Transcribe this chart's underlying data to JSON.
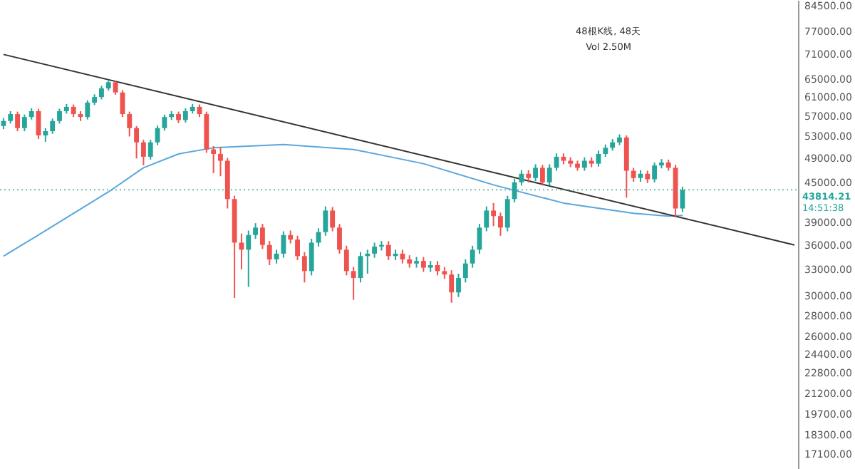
{
  "chart_data": {
    "type": "candlestick",
    "categories": [
      null,
      null,
      null,
      null,
      null,
      null,
      null,
      null,
      null,
      null,
      null,
      null,
      null,
      null,
      null,
      null,
      null,
      null,
      null,
      null,
      null,
      null,
      null,
      null,
      null,
      null,
      null,
      null,
      null,
      null,
      null,
      null,
      null,
      null,
      null,
      null,
      null,
      null,
      null,
      null,
      null,
      null,
      null,
      null,
      null,
      null,
      null,
      null,
      null,
      null,
      null,
      null,
      null,
      null,
      null,
      null,
      null,
      null,
      null,
      null,
      null,
      null,
      null,
      null,
      null,
      null,
      null,
      null,
      null,
      null,
      null,
      null,
      null,
      null,
      null,
      null,
      null,
      null,
      null,
      null,
      null,
      null,
      null,
      null,
      null,
      null,
      null,
      null,
      null,
      null,
      null,
      null,
      null,
      null,
      null,
      null,
      null,
      null,
      null,
      null,
      null,
      null,
      null,
      null,
      null,
      null,
      null,
      null,
      null,
      null,
      null,
      null,
      null,
      null
    ],
    "ohlc": [
      [
        55000,
        56600,
        54400,
        56000
      ],
      [
        56000,
        58000,
        55500,
        57400
      ],
      [
        57400,
        57900,
        54000,
        54600
      ],
      [
        54600,
        57300,
        54000,
        56800
      ],
      [
        56800,
        58600,
        56300,
        58000
      ],
      [
        58000,
        58500,
        52500,
        53200
      ],
      [
        53200,
        54600,
        52000,
        54000
      ],
      [
        54000,
        56500,
        53500,
        56000
      ],
      [
        56000,
        58500,
        55500,
        58000
      ],
      [
        58000,
        59500,
        57500,
        58900
      ],
      [
        58900,
        59400,
        56800,
        57400
      ],
      [
        57400,
        58000,
        56000,
        56800
      ],
      [
        56800,
        60300,
        56300,
        59800
      ],
      [
        59800,
        61600,
        59300,
        61000
      ],
      [
        61000,
        63500,
        60500,
        62900
      ],
      [
        62900,
        64900,
        62400,
        64300
      ],
      [
        64300,
        64700,
        61500,
        62000
      ],
      [
        62000,
        62500,
        56800,
        57400
      ],
      [
        57400,
        57900,
        53000,
        54600
      ],
      [
        54600,
        55000,
        49000,
        51900
      ],
      [
        51900,
        52400,
        47800,
        49300
      ],
      [
        49300,
        52400,
        48800,
        51900
      ],
      [
        51900,
        55100,
        51400,
        54600
      ],
      [
        54600,
        57300,
        54100,
        56800
      ],
      [
        56800,
        58000,
        56200,
        57400
      ],
      [
        57400,
        57900,
        55600,
        56200
      ],
      [
        56200,
        58600,
        55700,
        58000
      ],
      [
        58000,
        59500,
        57500,
        58900
      ],
      [
        58900,
        59400,
        56800,
        57400
      ],
      [
        57400,
        57900,
        50000,
        50600
      ],
      [
        50600,
        51200,
        46500,
        49800
      ],
      [
        49800,
        51000,
        46000,
        48600
      ],
      [
        48600,
        49100,
        41000,
        42400
      ],
      [
        42400,
        42900,
        29800,
        36300
      ],
      [
        36300,
        37500,
        33000,
        35400
      ],
      [
        35400,
        37900,
        31000,
        37300
      ],
      [
        37300,
        38900,
        36800,
        38300
      ],
      [
        38300,
        38800,
        35500,
        36000
      ],
      [
        36000,
        36500,
        33500,
        34200
      ],
      [
        34200,
        35400,
        33700,
        34900
      ],
      [
        34900,
        37800,
        34400,
        37300
      ],
      [
        37300,
        37900,
        36200,
        36700
      ],
      [
        36700,
        37200,
        34100,
        34600
      ],
      [
        34600,
        35100,
        31500,
        32800
      ],
      [
        32800,
        36800,
        32300,
        36300
      ],
      [
        36300,
        38200,
        35800,
        37700
      ],
      [
        37700,
        41300,
        37200,
        40700
      ],
      [
        40700,
        41200,
        37800,
        38300
      ],
      [
        38300,
        38800,
        34900,
        35400
      ],
      [
        35400,
        35900,
        32300,
        32800
      ],
      [
        32800,
        33300,
        29600,
        32000
      ],
      [
        32000,
        35100,
        31500,
        34600
      ],
      [
        34600,
        35400,
        32500,
        34900
      ],
      [
        34900,
        36300,
        34400,
        35800
      ],
      [
        35800,
        36500,
        35300,
        36000
      ],
      [
        36000,
        36500,
        34100,
        34600
      ],
      [
        34600,
        35400,
        34100,
        34900
      ],
      [
        34900,
        35400,
        33700,
        34200
      ],
      [
        34200,
        34700,
        33200,
        33700
      ],
      [
        33700,
        34500,
        33200,
        34000
      ],
      [
        34000,
        34500,
        32700,
        33200
      ],
      [
        33200,
        34000,
        32700,
        33500
      ],
      [
        33500,
        34000,
        32300,
        32800
      ],
      [
        32800,
        33300,
        31900,
        32400
      ],
      [
        32400,
        32900,
        29300,
        30400
      ],
      [
        30400,
        32500,
        29900,
        32000
      ],
      [
        32000,
        34200,
        31500,
        33700
      ],
      [
        33700,
        35900,
        33200,
        35400
      ],
      [
        35400,
        38800,
        34900,
        38300
      ],
      [
        38300,
        41300,
        37800,
        40700
      ],
      [
        40700,
        41800,
        38500,
        39900
      ],
      [
        39900,
        40400,
        37200,
        38300
      ],
      [
        38300,
        42900,
        37800,
        42400
      ],
      [
        42400,
        45600,
        41900,
        45000
      ],
      [
        45000,
        47000,
        44500,
        46400
      ],
      [
        46400,
        47000,
        45000,
        45700
      ],
      [
        45700,
        48000,
        45200,
        47400
      ],
      [
        47400,
        47900,
        44500,
        45000
      ],
      [
        45000,
        48000,
        44500,
        47400
      ],
      [
        47400,
        49900,
        46900,
        49300
      ],
      [
        49300,
        49900,
        48000,
        48600
      ],
      [
        48600,
        49200,
        47500,
        48100
      ],
      [
        48100,
        48600,
        46900,
        47400
      ],
      [
        47400,
        49200,
        46900,
        48600
      ],
      [
        48600,
        49200,
        47500,
        48100
      ],
      [
        48100,
        50400,
        47600,
        49800
      ],
      [
        49800,
        51500,
        49300,
        50900
      ],
      [
        50900,
        52500,
        50400,
        51900
      ],
      [
        51900,
        53400,
        51400,
        52800
      ],
      [
        52800,
        53200,
        42600,
        46900
      ],
      [
        46900,
        47400,
        45100,
        45700
      ],
      [
        45700,
        47000,
        45100,
        46400
      ],
      [
        46400,
        46900,
        44900,
        45500
      ],
      [
        45500,
        48300,
        45000,
        47800
      ],
      [
        47800,
        48900,
        47300,
        48300
      ],
      [
        48300,
        48800,
        46900,
        47400
      ],
      [
        47400,
        47900,
        39800,
        41000
      ],
      [
        41000,
        44300,
        40500,
        43814.21
      ],
      null,
      null,
      null,
      null,
      null,
      null,
      null,
      null,
      null,
      null,
      null,
      null,
      null,
      null,
      null,
      null
    ],
    "colors": [
      "#26a69a",
      "#26a69a",
      "#ef5350",
      "#26a69a",
      "#26a69a",
      "#ef5350",
      "#26a69a",
      "#26a69a",
      "#26a69a",
      "#26a69a",
      "#ef5350",
      "#ef5350",
      "#26a69a",
      "#26a69a",
      "#26a69a",
      "#26a69a",
      "#ef5350",
      "#ef5350",
      "#ef5350",
      "#ef5350",
      "#ef5350",
      "#26a69a",
      "#26a69a",
      "#26a69a",
      "#26a69a",
      "#ef5350",
      "#26a69a",
      "#26a69a",
      "#ef5350",
      "#ef5350",
      "#ef5350",
      "#ef5350",
      "#ef5350",
      "#ef5350",
      "#ef5350",
      "#26a69a",
      "#26a69a",
      "#ef5350",
      "#ef5350",
      "#26a69a",
      "#26a69a",
      "#ef5350",
      "#ef5350",
      "#ef5350",
      "#26a69a",
      "#26a69a",
      "#26a69a",
      "#ef5350",
      "#ef5350",
      "#ef5350",
      "#ef5350",
      "#26a69a",
      "#26a69a",
      "#26a69a",
      "#26a69a",
      "#ef5350",
      "#26a69a",
      "#ef5350",
      "#ef5350",
      "#26a69a",
      "#ef5350",
      "#26a69a",
      "#ef5350",
      "#ef5350",
      "#ef5350",
      "#26a69a",
      "#26a69a",
      "#26a69a",
      "#26a69a",
      "#26a69a",
      "#ef5350",
      "#ef5350",
      "#26a69a",
      "#26a69a",
      "#26a69a",
      "#ef5350",
      "#26a69a",
      "#ef5350",
      "#26a69a",
      "#26a69a",
      "#ef5350",
      "#ef5350",
      "#ef5350",
      "#26a69a",
      "#ef5350",
      "#26a69a",
      "#26a69a",
      "#26a69a",
      "#26a69a",
      "#ef5350",
      "#ef5350",
      "#26a69a",
      "#ef5350",
      "#26a69a",
      "#26a69a",
      "#ef5350",
      "#ef5350",
      "#26a69a",
      null,
      null,
      null,
      null,
      null,
      null,
      null,
      null,
      null,
      null,
      null,
      null,
      null,
      null,
      null,
      null
    ],
    "series": [
      {
        "type": "line",
        "color": "#5aa7de",
        "values": [
          34600,
          null,
          null,
          null,
          null,
          37300,
          null,
          null,
          null,
          null,
          40300,
          null,
          null,
          null,
          null,
          43500,
          null,
          null,
          null,
          null,
          47400,
          null,
          null,
          null,
          null,
          49800,
          null,
          null,
          null,
          null,
          50900,
          null,
          null,
          null,
          null,
          null,
          null,
          null,
          null,
          null,
          51500,
          null,
          null,
          null,
          null,
          null,
          null,
          null,
          null,
          null,
          50600,
          null,
          null,
          null,
          null,
          null,
          null,
          null,
          null,
          null,
          48100,
          null,
          null,
          null,
          null,
          null,
          null,
          null,
          null,
          null,
          44600,
          null,
          null,
          null,
          null,
          null,
          null,
          null,
          null,
          null,
          41800,
          null,
          null,
          null,
          null,
          null,
          null,
          null,
          null,
          null,
          40300,
          null,
          null,
          null,
          null,
          39900,
          null,
          40000,
          null,
          null,
          null,
          null,
          null,
          null,
          null,
          null,
          null,
          null,
          null,
          null,
          null,
          null,
          null,
          null
        ]
      },
      {
        "type": "line",
        "color": "#333333",
        "values": [
          71000,
          null,
          null,
          null,
          null,
          null,
          null,
          null,
          null,
          null,
          null,
          null,
          null,
          null,
          null,
          null,
          null,
          null,
          null,
          null,
          null,
          null,
          null,
          null,
          null,
          null,
          null,
          null,
          null,
          null,
          null,
          null,
          null,
          null,
          null,
          null,
          null,
          null,
          null,
          null,
          null,
          null,
          null,
          null,
          null,
          null,
          null,
          null,
          null,
          null,
          null,
          null,
          null,
          null,
          null,
          null,
          null,
          null,
          null,
          null,
          null,
          null,
          null,
          null,
          null,
          null,
          null,
          null,
          null,
          null,
          null,
          null,
          null,
          null,
          null,
          null,
          null,
          null,
          null,
          null,
          null,
          null,
          null,
          null,
          null,
          null,
          null,
          null,
          null,
          null,
          null,
          null,
          null,
          null,
          null,
          null,
          null,
          null,
          null,
          null,
          null,
          null,
          null,
          null,
          null,
          null,
          null,
          null,
          null,
          null,
          null,
          null,
          null,
          36000
        ]
      }
    ],
    "log": "y",
    "ylim": [
      16200,
      86200
    ],
    "yticks": [
      {
        "value": 17100,
        "label": "17100.00"
      },
      {
        "value": 18300,
        "label": "18300.00"
      },
      {
        "value": 19700,
        "label": "19700.00"
      },
      {
        "value": 21200,
        "label": "21200.00"
      },
      {
        "value": 22800,
        "label": "22800.00"
      },
      {
        "value": 24400,
        "label": "24400.00"
      },
      {
        "value": 26000,
        "label": "26000.00"
      },
      {
        "value": 28000,
        "label": "28000.00"
      },
      {
        "value": 30000,
        "label": "30000.00"
      },
      {
        "value": 33000,
        "label": "33000.00"
      },
      {
        "value": 36000,
        "label": "36000.00"
      },
      {
        "value": 39000,
        "label": "39000.00"
      },
      {
        "value": 45000,
        "label": "45000.00"
      },
      {
        "value": 49000,
        "label": "49000.00"
      },
      {
        "value": 53000,
        "label": "53000.00"
      },
      {
        "value": 57000,
        "label": "57000.00"
      },
      {
        "value": 61000,
        "label": "61000.00"
      },
      {
        "value": 65000,
        "label": "65000.00"
      },
      {
        "value": 71000,
        "label": "71000.00"
      },
      {
        "value": 77000,
        "label": "77000.00"
      },
      {
        "value": 84500,
        "label": "84500.00"
      }
    ],
    "ref_lines": [
      {
        "axis": "y",
        "value": 43814.21,
        "label": "43814.21",
        "color": "#26a69a",
        "line_style": "dotted"
      }
    ],
    "annotations": [
      "48根K线, 48天",
      "Vol 2.50M",
      "14:51:38"
    ],
    "tick_labels": "y",
    "grid": false
  }
}
